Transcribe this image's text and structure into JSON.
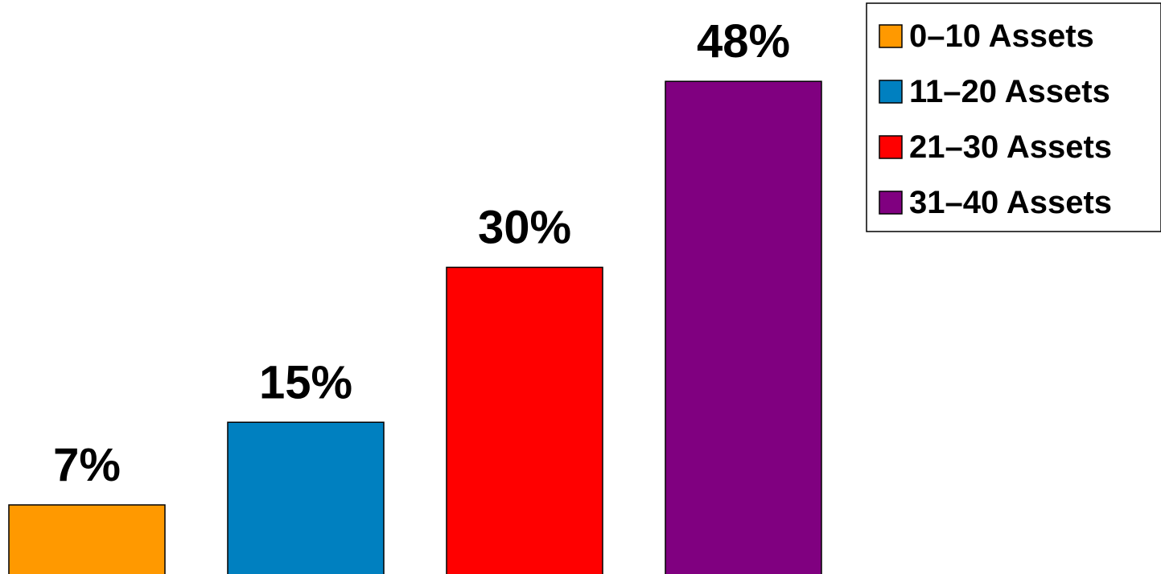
{
  "chart_data": {
    "type": "bar",
    "categories": [
      "0–10 Assets",
      "11–20 Assets",
      "21–30 Assets",
      "31–40 Assets"
    ],
    "values": [
      7,
      15,
      30,
      48
    ],
    "data_labels": [
      "7%",
      "15%",
      "30%",
      "48%"
    ],
    "colors": [
      "#ff9900",
      "#0080c0",
      "#ff0000",
      "#800080"
    ],
    "title": "",
    "xlabel": "",
    "ylabel": "",
    "grid": false,
    "legend": {
      "placement": "top-right",
      "entries": [
        "0–10 Assets",
        "11–20 Assets",
        "21–30 Assets",
        "31–40 Assets"
      ]
    }
  }
}
